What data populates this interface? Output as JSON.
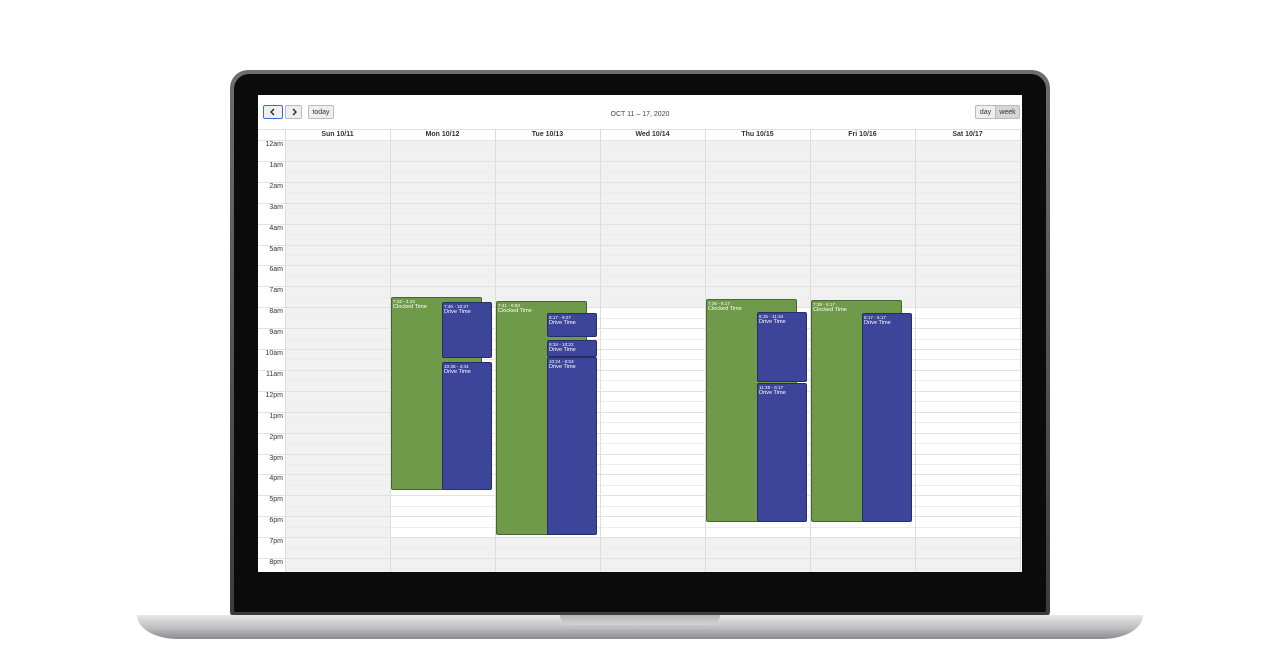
{
  "toolbar": {
    "title": "OCT 11 – 17, 2020",
    "today": "today",
    "views": [
      "day",
      "week"
    ]
  },
  "hours": [
    "12am",
    "1am",
    "2am",
    "3am",
    "4am",
    "5am",
    "6am",
    "7am",
    "8am",
    "9am",
    "10am",
    "11am",
    "12pm",
    "1pm",
    "2pm",
    "3pm",
    "4pm",
    "5pm",
    "6pm",
    "7pm",
    "8pm"
  ],
  "days": [
    {
      "label": "Sun 10/11",
      "events": []
    },
    {
      "label": "Mon 10/12",
      "events": [
        {
          "time": "7:32 - 4:44",
          "title": "Clocked Time",
          "color": "#6f9a4a"
        },
        {
          "time": "7:46 - 10:27",
          "title": "Drive Time",
          "color": "#3d459b"
        },
        {
          "time": "10:36 - 4:44",
          "title": "Drive Time",
          "color": "#3d459b"
        }
      ]
    },
    {
      "label": "Tue 10/13",
      "events": [
        {
          "time": "7:41 - 6:53",
          "title": "Clocked Time",
          "color": "#6f9a4a"
        },
        {
          "time": "8:17 - 9:27",
          "title": "Drive Time",
          "color": "#3d459b"
        },
        {
          "time": "9:34 - 10:22",
          "title": "Drive Time",
          "color": "#3d459b"
        },
        {
          "time": "10:24 - 6:53",
          "title": "Drive Time",
          "color": "#3d459b"
        }
      ]
    },
    {
      "label": "Wed 10/14",
      "events": []
    },
    {
      "label": "Thu 10/15",
      "events": [
        {
          "time": "7:36 - 6:17",
          "title": "Clocked Time",
          "color": "#6f9a4a"
        },
        {
          "time": "8:15 - 11:34",
          "title": "Drive Time",
          "color": "#3d459b"
        },
        {
          "time": "11:38 - 6:17",
          "title": "Drive Time",
          "color": "#3d459b"
        }
      ]
    },
    {
      "label": "Fri 10/16",
      "events": [
        {
          "time": "7:38 - 6:17",
          "title": "Clocked Time",
          "color": "#6f9a4a"
        },
        {
          "time": "8:17 - 6:17",
          "title": "Drive Time",
          "color": "#3d459b"
        }
      ]
    },
    {
      "label": "Sat 10/17",
      "events": []
    }
  ]
}
